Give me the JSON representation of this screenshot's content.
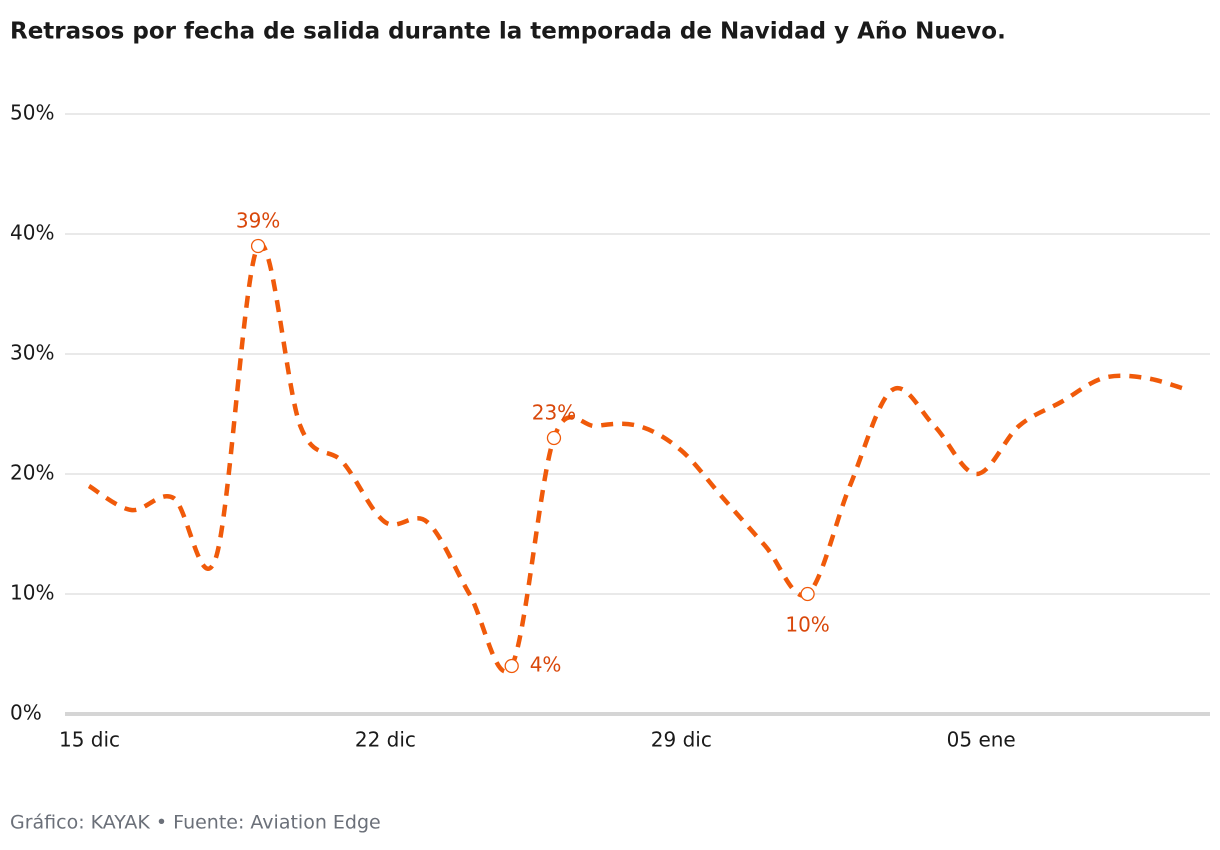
{
  "chart_data": {
    "type": "line",
    "title": "Retrasos por fecha de salida durante la temporada de Navidad y Año Nuevo.",
    "source": "Gráfico: KAYAK • Fuente: Aviation Edge",
    "categories": [
      "15 dic",
      null,
      null,
      null,
      null,
      null,
      null,
      "22 dic",
      null,
      null,
      null,
      null,
      null,
      null,
      "29 dic",
      null,
      null,
      null,
      null,
      null,
      null,
      "05 ene",
      null,
      null,
      null,
      null,
      null
    ],
    "series": [
      {
        "name": "Retrasos",
        "color": "#f05a0a",
        "values": [
          19,
          17,
          18,
          13,
          39,
          24,
          21,
          16,
          16,
          10,
          4,
          23,
          24,
          24,
          22,
          18,
          14,
          10,
          19,
          27,
          24,
          20,
          24,
          26,
          28,
          28,
          27
        ],
        "value_labels": [
          null,
          null,
          null,
          null,
          "39%",
          null,
          null,
          null,
          null,
          null,
          "4%",
          "23%",
          null,
          null,
          null,
          null,
          null,
          "10%",
          null,
          null,
          null,
          null,
          null,
          null,
          null,
          null,
          null
        ]
      }
    ],
    "ylim": [
      0,
      50
    ],
    "yticks": [
      {
        "value": 0,
        "label": "0%"
      },
      {
        "value": 10,
        "label": "10%"
      },
      {
        "value": 20,
        "label": "20%"
      },
      {
        "value": 30,
        "label": "30%"
      },
      {
        "value": 40,
        "label": "40%"
      },
      {
        "value": 50,
        "label": "50%"
      }
    ],
    "grid": true
  }
}
